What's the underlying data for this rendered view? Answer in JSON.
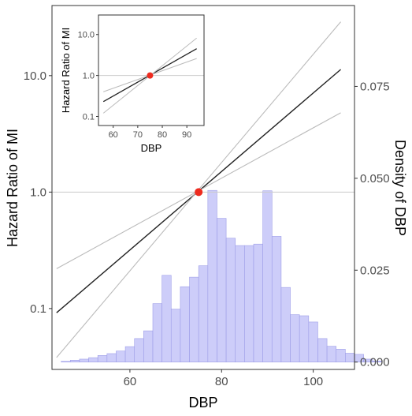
{
  "chart_data": {
    "type": "line",
    "title": "",
    "xlabel": "DBP",
    "ylabel": "Hazard Ratio of MI",
    "y2label": "Density of DBP",
    "xlim": [
      43,
      109
    ],
    "ylim": [
      0.03,
      40
    ],
    "y_scale": "log",
    "y2lim": [
      -0.002,
      0.097
    ],
    "x_ticks": [
      60,
      80,
      100
    ],
    "y_ticks": [
      0.1,
      1.0,
      10.0
    ],
    "y_tick_labels": [
      "0.1",
      "1.0",
      "10.0"
    ],
    "y2_ticks": [
      0.0,
      0.025,
      0.05,
      0.075
    ],
    "y2_tick_labels": [
      "0.000",
      "0.025",
      "0.050",
      "0.075"
    ],
    "reference_line": {
      "y": 1.0,
      "color": "#cccccc"
    },
    "reference_point": {
      "x": 75,
      "y": 1.0,
      "color": "#ee2b1f"
    },
    "series": [
      {
        "role": "estimate",
        "color": "#222222",
        "x": [
          44,
          106
        ],
        "y": [
          0.092,
          11.3
        ]
      },
      {
        "role": "upper",
        "color": "#bbbbbb",
        "x": [
          44,
          106
        ],
        "y": [
          0.22,
          4.8
        ]
      },
      {
        "role": "lower",
        "color": "#bbbbbb",
        "x": [
          44,
          106
        ],
        "y": [
          0.038,
          29
        ]
      }
    ],
    "histogram": {
      "color": "#c8c8f8",
      "edge_color": "#9e9ee8",
      "bin_width": 2,
      "bins_start": 45,
      "density": [
        0.0002,
        0.0005,
        0.0008,
        0.0012,
        0.0018,
        0.0023,
        0.003,
        0.0042,
        0.0064,
        0.0085,
        0.0159,
        0.0236,
        0.0144,
        0.0205,
        0.0231,
        0.0262,
        0.0467,
        0.0391,
        0.0337,
        0.0317,
        0.0317,
        0.0321,
        0.0466,
        0.0342,
        0.0203,
        0.0129,
        0.0126,
        0.0109,
        0.0064,
        0.0043,
        0.0035,
        0.0024,
        0.0021,
        0.0008,
        0.0003
      ]
    },
    "inset": {
      "xlabel": "DBP",
      "ylabel": "Hazard Ratio of MI",
      "xlim": [
        54,
        97
      ],
      "ylim": [
        0.06,
        30
      ],
      "y_scale": "log",
      "x_ticks": [
        60,
        70,
        80,
        90
      ],
      "y_ticks": [
        0.1,
        1.0,
        10.0
      ],
      "y_tick_labels": [
        "0.1",
        "1.0",
        "10.0"
      ],
      "reference_line": {
        "y": 1.0
      },
      "reference_point": {
        "x": 75,
        "y": 1.0
      },
      "series": [
        {
          "role": "estimate",
          "color": "#222222",
          "x": [
            56,
            94
          ],
          "y": [
            0.23,
            4.5
          ]
        },
        {
          "role": "upper",
          "color": "#bbbbbb",
          "x": [
            56,
            94
          ],
          "y": [
            0.4,
            2.6
          ]
        },
        {
          "role": "lower",
          "color": "#bbbbbb",
          "x": [
            56,
            94
          ],
          "y": [
            0.12,
            8.2
          ]
        }
      ]
    }
  }
}
